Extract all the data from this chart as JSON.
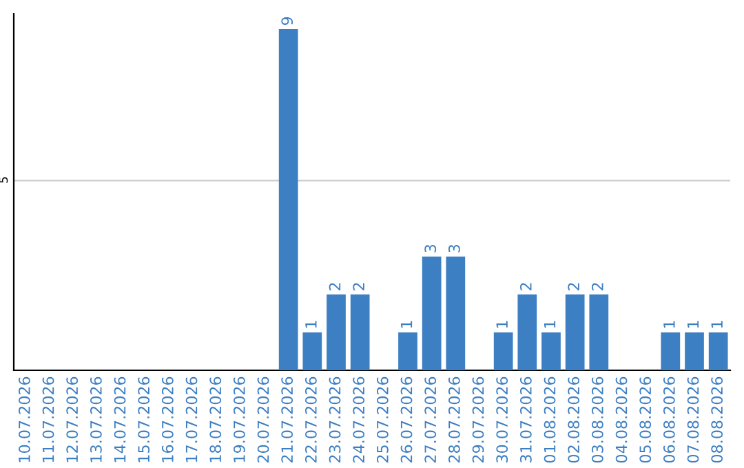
{
  "chart_data": {
    "type": "bar",
    "categories": [
      "10.07.2026",
      "11.07.2026",
      "12.07.2026",
      "13.07.2026",
      "14.07.2026",
      "15.07.2026",
      "16.07.2026",
      "17.07.2026",
      "18.07.2026",
      "19.07.2026",
      "20.07.2026",
      "21.07.2026",
      "22.07.2026",
      "23.07.2026",
      "24.07.2026",
      "25.07.2026",
      "26.07.2026",
      "27.07.2026",
      "28.07.2026",
      "29.07.2026",
      "30.07.2026",
      "31.07.2026",
      "01.08.2026",
      "02.08.2026",
      "03.08.2026",
      "04.08.2026",
      "05.08.2026",
      "06.08.2026",
      "07.08.2026",
      "08.08.2026"
    ],
    "values": [
      0,
      0,
      0,
      0,
      0,
      0,
      0,
      0,
      0,
      0,
      0,
      9,
      1,
      2,
      2,
      0,
      1,
      3,
      3,
      0,
      1,
      2,
      1,
      2,
      2,
      0,
      0,
      1,
      1,
      1
    ],
    "value_labels": [
      null,
      null,
      null,
      null,
      null,
      null,
      null,
      null,
      null,
      null,
      null,
      "9",
      "1",
      "2",
      "2",
      null,
      "1",
      "3",
      "3",
      null,
      "1",
      "2",
      "1",
      "2",
      "2",
      null,
      null,
      "1",
      "1",
      "1"
    ],
    "color": "#3d7fc3",
    "ylim": [
      0,
      9.4
    ],
    "yticks": [
      5
    ],
    "grid": "y"
  }
}
